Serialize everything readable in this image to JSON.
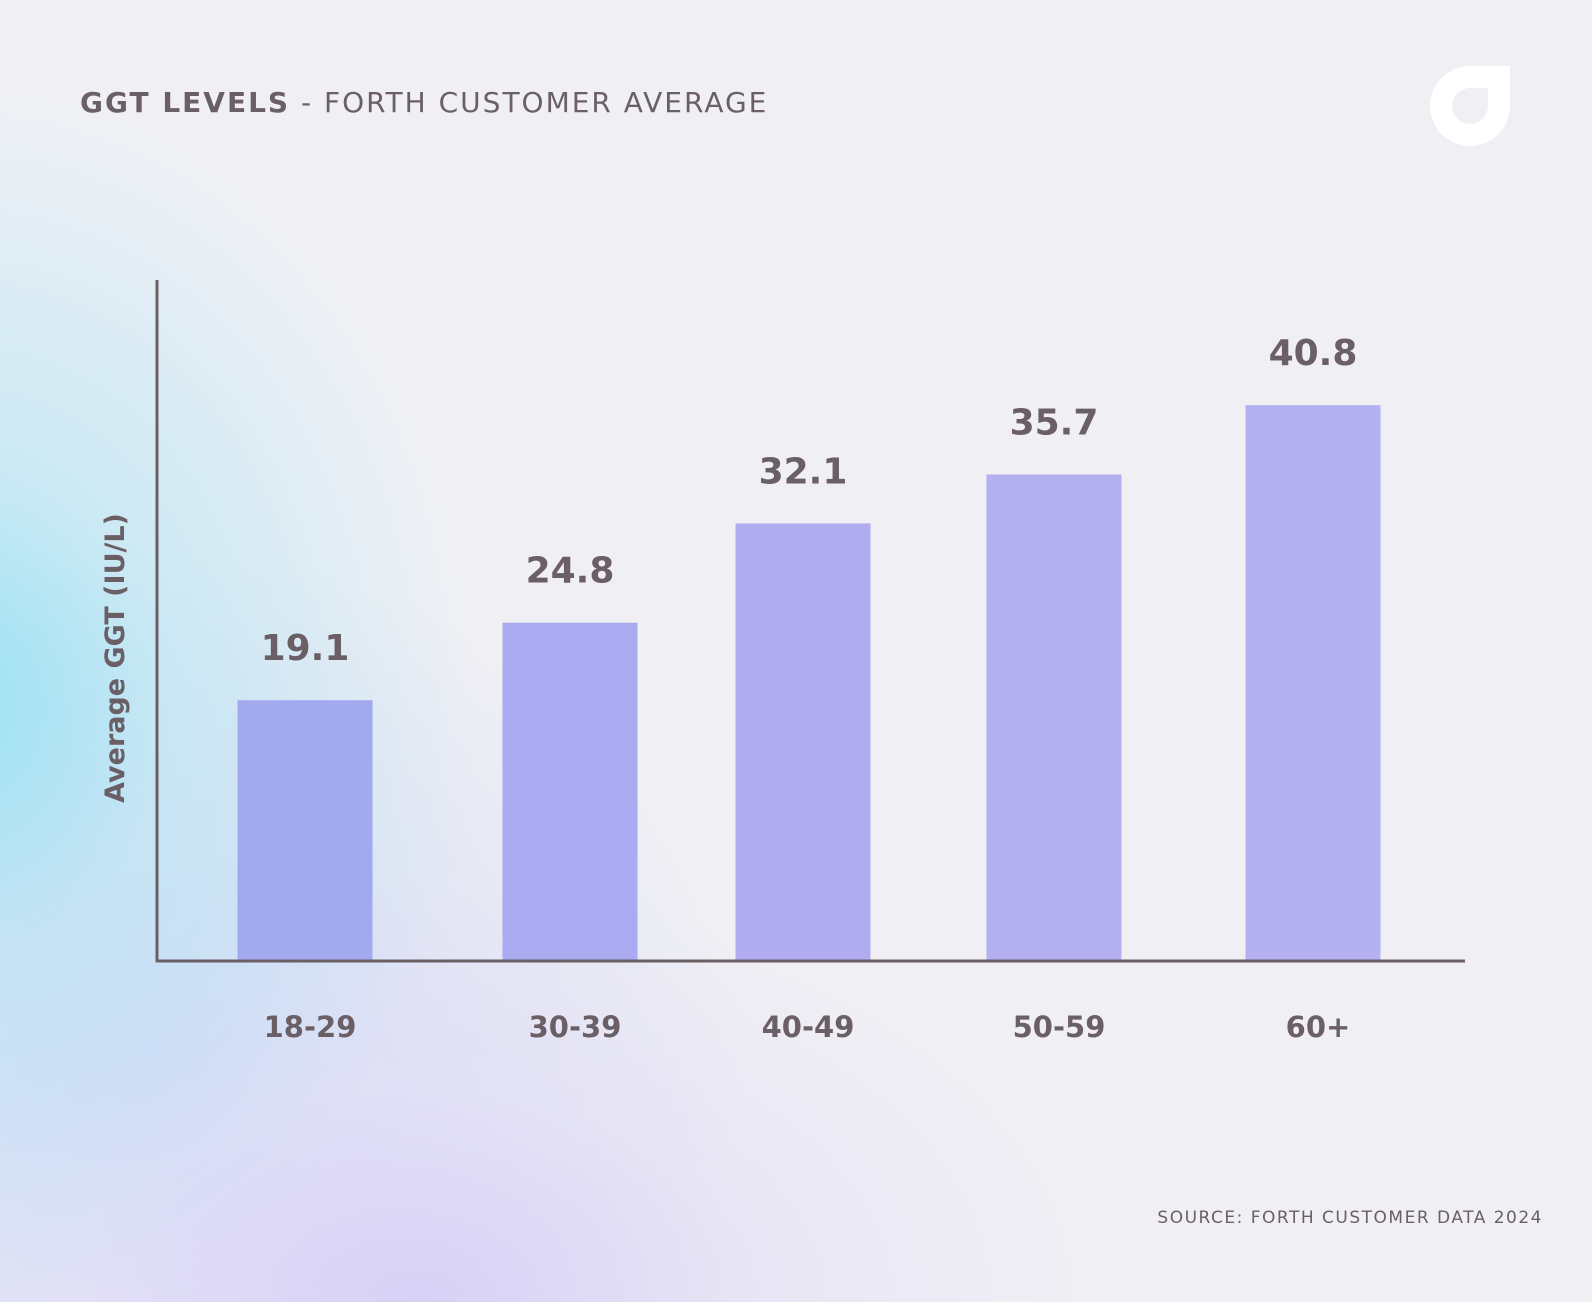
{
  "header": {
    "title_bold": "GGT LEVELS",
    "title_rest": " - FORTH CUSTOMER AVERAGE"
  },
  "logo": {
    "icon": "forth-logo-icon",
    "color": "#ffffff"
  },
  "chart_data": {
    "type": "bar",
    "title": "GGT LEVELS - FORTH CUSTOMER AVERAGE",
    "categories": [
      "18-29",
      "30-39",
      "40-49",
      "50-59",
      "60+"
    ],
    "values": [
      19.1,
      24.8,
      32.1,
      35.7,
      40.8
    ],
    "value_labels": [
      "19.1",
      "24.8",
      "32.1",
      "35.7",
      "40.8"
    ],
    "xlabel": "",
    "ylabel": "Average GGT (IU/L)",
    "ylim": [
      0,
      50
    ],
    "grid": false,
    "bar_colors": [
      "#a2a9ee",
      "#aaaaf0",
      "#b0acef",
      "#b4b0ef",
      "#b5b0ef"
    ],
    "axis_color": "#6b5f66",
    "label_color": "#6b5f66"
  },
  "footer": {
    "source": "SOURCE: FORTH CUSTOMER DATA 2024"
  }
}
